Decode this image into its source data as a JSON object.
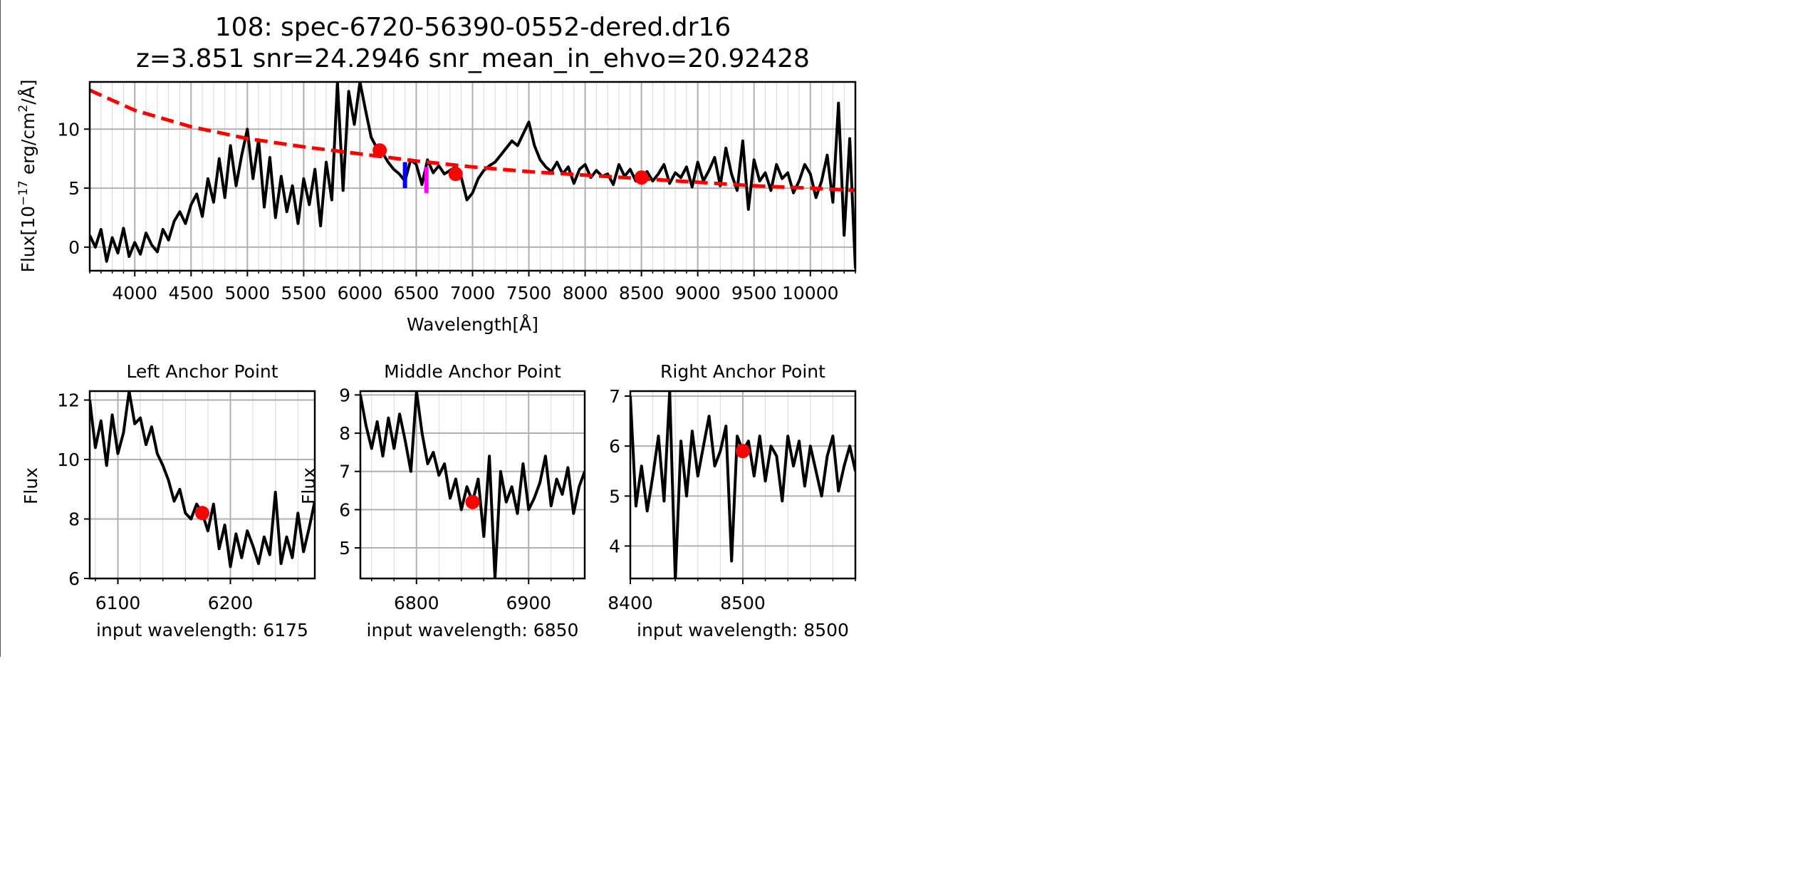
{
  "figure": {
    "title_line1": "108: spec-6720-56390-0552-dered.dr16",
    "title_line2": "z=3.851 snr=24.2946 snr_mean_in_ehvo=20.92428"
  },
  "colors": {
    "spectrum": "#000000",
    "powerlaw": "#ff0000",
    "anchor": "#ff0000",
    "marker_blue": "#0000ff",
    "marker_magenta": "#ff00ff",
    "grid": "#b0b0b0"
  },
  "chart_data": [
    {
      "id": "main",
      "type": "line",
      "title": "",
      "xlabel": "Wavelength[Å]",
      "ylabel_parts": {
        "a": "Flux[10",
        "sup1": "−17",
        "b": " erg/cm",
        "sup2": "2",
        "c": "/Å]"
      },
      "xlim": [
        3600,
        10400
      ],
      "ylim": [
        -2,
        14
      ],
      "xticks": [
        4000,
        4500,
        5000,
        5500,
        6000,
        6500,
        7000,
        7500,
        8000,
        8500,
        9000,
        9500,
        10000
      ],
      "xtick_labels": [
        "4000",
        "4500",
        "5000",
        "5500",
        "6000",
        "6500",
        "7000",
        "7500",
        "8000",
        "8500",
        "9000",
        "9500",
        "10000"
      ],
      "yticks": [
        0,
        5,
        10
      ],
      "ytick_labels": [
        "0",
        "5",
        "10"
      ],
      "grid": true,
      "series": [
        {
          "kind": "spectrum",
          "x": [
            3600,
            3650,
            3700,
            3750,
            3800,
            3850,
            3900,
            3950,
            4000,
            4050,
            4100,
            4150,
            4200,
            4250,
            4300,
            4350,
            4400,
            4450,
            4500,
            4550,
            4600,
            4650,
            4700,
            4750,
            4800,
            4850,
            4900,
            4950,
            5000,
            5050,
            5100,
            5150,
            5200,
            5250,
            5300,
            5350,
            5400,
            5450,
            5500,
            5550,
            5600,
            5650,
            5700,
            5750,
            5800,
            5850,
            5900,
            5950,
            6000,
            6050,
            6100,
            6150,
            6200,
            6250,
            6300,
            6350,
            6400,
            6450,
            6500,
            6550,
            6600,
            6650,
            6700,
            6750,
            6800,
            6850,
            6900,
            6950,
            7000,
            7050,
            7100,
            7150,
            7200,
            7250,
            7300,
            7350,
            7400,
            7450,
            7500,
            7550,
            7600,
            7650,
            7700,
            7750,
            7800,
            7850,
            7900,
            7950,
            8000,
            8050,
            8100,
            8150,
            8200,
            8250,
            8300,
            8350,
            8400,
            8450,
            8500,
            8550,
            8600,
            8650,
            8700,
            8750,
            8800,
            8850,
            8900,
            8950,
            9000,
            9050,
            9100,
            9150,
            9200,
            9250,
            9300,
            9350,
            9400,
            9450,
            9500,
            9550,
            9600,
            9650,
            9700,
            9750,
            9800,
            9850,
            9900,
            9950,
            10000,
            10050,
            10100,
            10150,
            10200,
            10250,
            10300,
            10350,
            10400
          ],
          "y": [
            1.0,
            0.0,
            1.5,
            -1.2,
            0.8,
            -0.5,
            1.6,
            -0.8,
            0.4,
            -0.6,
            1.2,
            0.2,
            -0.4,
            1.5,
            0.6,
            2.2,
            3.0,
            2.0,
            3.6,
            4.5,
            2.6,
            5.8,
            3.8,
            7.5,
            4.2,
            8.6,
            5.2,
            7.8,
            10.0,
            5.8,
            9.1,
            3.4,
            7.6,
            2.5,
            6.0,
            3.0,
            5.2,
            2.0,
            5.8,
            3.6,
            6.6,
            1.8,
            7.2,
            4.0,
            14.0,
            4.8,
            13.2,
            10.4,
            14.0,
            11.6,
            9.3,
            8.4,
            8.0,
            7.2,
            6.6,
            6.2,
            5.6,
            7.4,
            7.0,
            5.3,
            7.4,
            6.3,
            6.9,
            6.2,
            6.5,
            6.8,
            5.9,
            4.0,
            4.6,
            5.8,
            6.5,
            6.9,
            7.2,
            7.8,
            8.4,
            9.0,
            8.6,
            9.6,
            10.6,
            8.6,
            7.4,
            6.8,
            6.4,
            7.2,
            6.2,
            6.8,
            5.4,
            6.6,
            7.0,
            5.9,
            6.5,
            6.0,
            6.2,
            5.3,
            7.0,
            6.0,
            6.6,
            5.6,
            6.0,
            6.4,
            5.6,
            6.2,
            7.0,
            5.4,
            6.3,
            5.9,
            6.8,
            5.1,
            7.2,
            5.6,
            6.5,
            7.6,
            5.2,
            8.4,
            6.2,
            4.8,
            9.0,
            3.2,
            7.4,
            5.6,
            6.3,
            4.8,
            7.0,
            5.8,
            6.3,
            4.6,
            5.6,
            7.0,
            6.2,
            4.2,
            5.6,
            7.8,
            3.8,
            12.2,
            1.0,
            9.2,
            -1.8
          ]
        },
        {
          "kind": "powerlaw",
          "style": "dashed",
          "x": [
            3600,
            4000,
            4500,
            5000,
            5500,
            6000,
            6500,
            7000,
            7500,
            8000,
            8500,
            9000,
            9500,
            10000,
            10400
          ],
          "y": [
            13.3,
            11.6,
            10.2,
            9.2,
            8.5,
            7.9,
            7.3,
            6.8,
            6.4,
            6.1,
            5.8,
            5.5,
            5.2,
            5.0,
            4.8
          ]
        },
        {
          "kind": "marker-blue",
          "x": [
            6400,
            6400
          ],
          "y": [
            5.0,
            7.2
          ]
        },
        {
          "kind": "marker-magenta",
          "x": [
            6590,
            6590
          ],
          "y": [
            4.6,
            6.8
          ]
        }
      ],
      "anchor_points": [
        {
          "x": 6175,
          "y": 8.2
        },
        {
          "x": 6850,
          "y": 6.2
        },
        {
          "x": 8500,
          "y": 5.9
        }
      ]
    },
    {
      "id": "left",
      "type": "line",
      "title": "Left Anchor Point",
      "xlabel": "input wavelength: 6175",
      "ylabel": "Flux",
      "xlim": [
        6075,
        6275
      ],
      "ylim": [
        6,
        12.3
      ],
      "xticks": [
        6100,
        6200
      ],
      "xtick_labels": [
        "6100",
        "6200"
      ],
      "yticks": [
        6,
        8,
        10,
        12
      ],
      "ytick_labels": [
        "6",
        "8",
        "10",
        "12"
      ],
      "grid": true,
      "series": [
        {
          "kind": "spectrum",
          "x": [
            6075,
            6080,
            6085,
            6090,
            6095,
            6100,
            6105,
            6110,
            6115,
            6120,
            6125,
            6130,
            6135,
            6140,
            6145,
            6150,
            6155,
            6160,
            6165,
            6170,
            6175,
            6180,
            6185,
            6190,
            6195,
            6200,
            6205,
            6210,
            6215,
            6220,
            6225,
            6230,
            6235,
            6240,
            6245,
            6250,
            6255,
            6260,
            6265,
            6270,
            6275
          ],
          "y": [
            12.0,
            10.4,
            11.3,
            9.8,
            11.5,
            10.2,
            10.9,
            12.3,
            11.2,
            11.4,
            10.5,
            11.1,
            10.2,
            9.8,
            9.3,
            8.6,
            9.0,
            8.2,
            8.0,
            8.5,
            8.2,
            7.6,
            8.5,
            7.0,
            7.8,
            6.4,
            7.5,
            6.7,
            7.6,
            7.1,
            6.5,
            7.4,
            6.8,
            8.9,
            6.5,
            7.4,
            6.7,
            8.2,
            6.9,
            7.7,
            8.6
          ]
        }
      ],
      "anchor_points": [
        {
          "x": 6175,
          "y": 8.2
        }
      ]
    },
    {
      "id": "middle",
      "type": "line",
      "title": "Middle Anchor Point",
      "xlabel": "input wavelength: 6850",
      "ylabel": "Flux",
      "xlim": [
        6750,
        6950
      ],
      "ylim": [
        4.2,
        9.1
      ],
      "xticks": [
        6800,
        6900
      ],
      "xtick_labels": [
        "6800",
        "6900"
      ],
      "yticks": [
        5,
        6,
        7,
        8,
        9
      ],
      "ytick_labels": [
        "5",
        "6",
        "7",
        "8",
        "9"
      ],
      "grid": true,
      "series": [
        {
          "kind": "spectrum",
          "x": [
            6750,
            6755,
            6760,
            6765,
            6770,
            6775,
            6780,
            6785,
            6790,
            6795,
            6800,
            6805,
            6810,
            6815,
            6820,
            6825,
            6830,
            6835,
            6840,
            6845,
            6850,
            6855,
            6860,
            6865,
            6870,
            6875,
            6880,
            6885,
            6890,
            6895,
            6900,
            6905,
            6910,
            6915,
            6920,
            6925,
            6930,
            6935,
            6940,
            6945,
            6950
          ],
          "y": [
            9.0,
            8.2,
            7.6,
            8.3,
            7.4,
            8.4,
            7.6,
            8.5,
            7.8,
            7.0,
            9.1,
            8.0,
            7.2,
            7.5,
            6.9,
            7.2,
            6.3,
            6.8,
            6.0,
            6.6,
            6.2,
            6.8,
            5.3,
            7.4,
            4.2,
            7.0,
            6.2,
            6.6,
            5.9,
            7.2,
            6.0,
            6.3,
            6.7,
            7.4,
            6.1,
            6.8,
            6.4,
            7.1,
            5.9,
            6.6,
            7.0
          ]
        }
      ],
      "anchor_points": [
        {
          "x": 6850,
          "y": 6.2
        }
      ]
    },
    {
      "id": "right",
      "type": "line",
      "title": "Right Anchor Point",
      "xlabel": "input wavelength: 8500",
      "ylabel": "",
      "xlim": [
        8400,
        8600
      ],
      "ylim": [
        3.35,
        7.1
      ],
      "xticks": [
        8400,
        8500
      ],
      "xtick_labels": [
        "8400",
        "8500"
      ],
      "yticks": [
        4,
        5,
        6,
        7
      ],
      "ytick_labels": [
        "4",
        "5",
        "6",
        "7"
      ],
      "grid": true,
      "series": [
        {
          "kind": "spectrum",
          "x": [
            8400,
            8405,
            8410,
            8415,
            8420,
            8425,
            8430,
            8435,
            8440,
            8445,
            8450,
            8455,
            8460,
            8465,
            8470,
            8475,
            8480,
            8485,
            8490,
            8495,
            8500,
            8505,
            8510,
            8515,
            8520,
            8525,
            8530,
            8535,
            8540,
            8545,
            8550,
            8555,
            8560,
            8565,
            8570,
            8575,
            8580,
            8585,
            8590,
            8595,
            8600
          ],
          "y": [
            7.0,
            4.8,
            5.6,
            4.7,
            5.4,
            6.2,
            4.9,
            7.1,
            3.3,
            6.1,
            5.0,
            6.3,
            5.4,
            6.0,
            6.6,
            5.6,
            5.9,
            6.4,
            3.7,
            6.2,
            5.9,
            6.1,
            5.4,
            6.2,
            5.3,
            6.0,
            5.8,
            4.9,
            6.2,
            5.6,
            6.1,
            5.2,
            6.0,
            5.5,
            5.0,
            5.8,
            6.2,
            5.1,
            5.6,
            6.0,
            5.5
          ]
        }
      ],
      "anchor_points": [
        {
          "x": 8500,
          "y": 5.9
        }
      ]
    }
  ]
}
